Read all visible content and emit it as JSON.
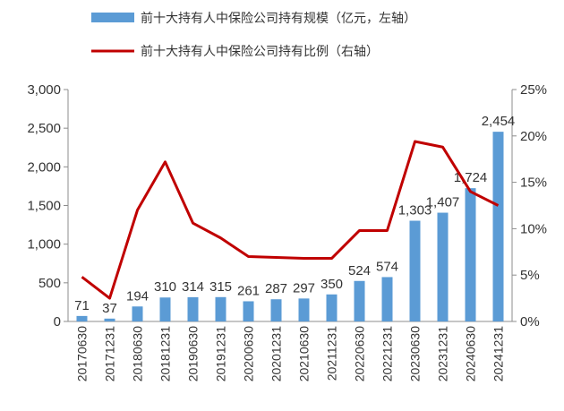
{
  "chart_data": {
    "type": "bar",
    "categories": [
      "20170630",
      "20171231",
      "20180630",
      "20181231",
      "20190630",
      "20191231",
      "20200630",
      "20201231",
      "20210630",
      "20211231",
      "20220630",
      "20221231",
      "20230630",
      "20231231",
      "20240630",
      "20241231"
    ],
    "series": [
      {
        "name": "前十大持有人中保险公司持有规模（亿元，左轴）",
        "type": "bar",
        "axis": "left",
        "color": "#5B9BD5",
        "values": [
          71,
          37,
          194,
          310,
          314,
          315,
          261,
          287,
          297,
          350,
          524,
          574,
          1303,
          1407,
          1724,
          2454
        ],
        "labels": [
          "71",
          "37",
          "194",
          "310",
          "314",
          "315",
          "261",
          "287",
          "297",
          "350",
          "524",
          "574",
          "1,303",
          "1,407",
          "1,724",
          "2,454"
        ]
      },
      {
        "name": "前十大持有人中保险公司持有比例（右轴）",
        "type": "line",
        "axis": "right",
        "color": "#C00000",
        "values": [
          4.8,
          2.5,
          12.0,
          17.2,
          10.6,
          9.0,
          7.0,
          6.9,
          6.8,
          6.8,
          9.8,
          9.8,
          19.4,
          18.8,
          14.0,
          12.5
        ]
      }
    ],
    "y_left": {
      "min": 0,
      "max": 3000,
      "step": 500,
      "tick_labels": [
        "0",
        "500",
        "1,000",
        "1,500",
        "2,000",
        "2,500",
        "3,000"
      ]
    },
    "y_right": {
      "min": 0,
      "max": 25,
      "step": 5,
      "tick_labels": [
        "0%",
        "5%",
        "10%",
        "15%",
        "20%",
        "25%"
      ]
    },
    "legend_position": "top",
    "grid": false
  }
}
